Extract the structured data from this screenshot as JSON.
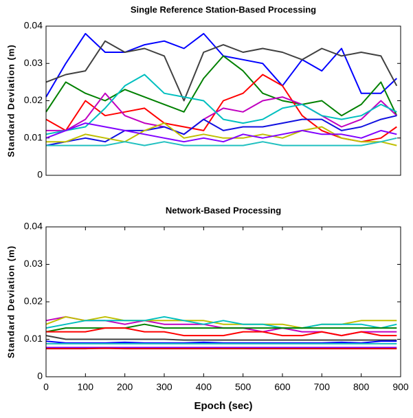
{
  "chart_data": [
    {
      "type": "line",
      "title": "Single Reference Station-Based Processing",
      "ylabel": "Standard Deviation (m)",
      "xlim": [
        0,
        900
      ],
      "ylim": [
        0,
        0.04
      ],
      "yticks": [
        0,
        0.01,
        0.02,
        0.03,
        0.04
      ],
      "x": [
        0,
        50,
        100,
        150,
        200,
        250,
        300,
        350,
        400,
        450,
        500,
        550,
        600,
        650,
        700,
        750,
        800,
        850,
        890
      ],
      "series": [
        {
          "color": "#0000ff",
          "values": [
            0.021,
            0.03,
            0.038,
            0.033,
            0.033,
            0.035,
            0.036,
            0.034,
            0.038,
            0.032,
            0.031,
            0.03,
            0.024,
            0.031,
            0.028,
            0.034,
            0.022,
            0.022,
            0.026
          ]
        },
        {
          "color": "#404040",
          "values": [
            0.025,
            0.027,
            0.028,
            0.036,
            0.033,
            0.034,
            0.032,
            0.02,
            0.033,
            0.035,
            0.033,
            0.034,
            0.033,
            0.031,
            0.034,
            0.032,
            0.033,
            0.032,
            0.024
          ]
        },
        {
          "color": "#008000",
          "values": [
            0.017,
            0.025,
            0.022,
            0.02,
            0.023,
            0.021,
            0.019,
            0.017,
            0.026,
            0.032,
            0.028,
            0.022,
            0.02,
            0.019,
            0.02,
            0.016,
            0.019,
            0.025,
            0.016
          ]
        },
        {
          "color": "#ff0000",
          "values": [
            0.015,
            0.012,
            0.02,
            0.016,
            0.017,
            0.018,
            0.014,
            0.013,
            0.012,
            0.02,
            0.022,
            0.027,
            0.024,
            0.016,
            0.012,
            0.01,
            0.009,
            0.01,
            0.013
          ]
        },
        {
          "color": "#c000c0",
          "values": [
            0.012,
            0.012,
            0.015,
            0.022,
            0.016,
            0.014,
            0.013,
            0.011,
            0.015,
            0.018,
            0.017,
            0.02,
            0.021,
            0.019,
            0.016,
            0.013,
            0.015,
            0.02,
            0.016
          ]
        },
        {
          "color": "#00bfbf",
          "values": [
            0.011,
            0.012,
            0.013,
            0.018,
            0.024,
            0.027,
            0.022,
            0.021,
            0.02,
            0.015,
            0.014,
            0.015,
            0.018,
            0.019,
            0.016,
            0.015,
            0.016,
            0.019,
            0.017
          ]
        },
        {
          "color": "#1010e0",
          "values": [
            0.008,
            0.009,
            0.01,
            0.009,
            0.012,
            0.012,
            0.013,
            0.011,
            0.015,
            0.012,
            0.013,
            0.013,
            0.014,
            0.015,
            0.015,
            0.012,
            0.013,
            0.015,
            0.016
          ]
        },
        {
          "color": "#bfbf00",
          "values": [
            0.009,
            0.009,
            0.011,
            0.01,
            0.009,
            0.012,
            0.014,
            0.01,
            0.011,
            0.01,
            0.01,
            0.011,
            0.01,
            0.012,
            0.013,
            0.01,
            0.009,
            0.009,
            0.008
          ]
        },
        {
          "color": "#20c0c0",
          "values": [
            0.008,
            0.008,
            0.008,
            0.008,
            0.009,
            0.008,
            0.009,
            0.008,
            0.008,
            0.008,
            0.008,
            0.009,
            0.008,
            0.008,
            0.008,
            0.008,
            0.008,
            0.009,
            0.01
          ]
        },
        {
          "color": "#8000ff",
          "values": [
            0.01,
            0.012,
            0.014,
            0.013,
            0.012,
            0.011,
            0.01,
            0.009,
            0.01,
            0.009,
            0.011,
            0.01,
            0.011,
            0.012,
            0.011,
            0.011,
            0.01,
            0.012,
            0.011
          ]
        }
      ]
    },
    {
      "type": "line",
      "title": "Network-Based Processing",
      "ylabel": "Standard Deviation (m)",
      "xlabel": "Epoch (sec)",
      "xlim": [
        0,
        900
      ],
      "xticks": [
        0,
        100,
        200,
        300,
        400,
        500,
        600,
        700,
        800,
        900
      ],
      "ylim": [
        0,
        0.04
      ],
      "yticks": [
        0,
        0.01,
        0.02,
        0.03,
        0.04
      ],
      "x": [
        0,
        50,
        100,
        150,
        200,
        250,
        300,
        350,
        400,
        450,
        500,
        550,
        600,
        650,
        700,
        750,
        800,
        850,
        890
      ],
      "series": [
        {
          "color": "#c000c0",
          "values": [
            0.015,
            0.016,
            0.015,
            0.015,
            0.014,
            0.015,
            0.014,
            0.014,
            0.014,
            0.013,
            0.013,
            0.012,
            0.013,
            0.012,
            0.012,
            0.011,
            0.012,
            0.012,
            0.012
          ]
        },
        {
          "color": "#bfbf00",
          "values": [
            0.014,
            0.016,
            0.015,
            0.016,
            0.015,
            0.015,
            0.015,
            0.015,
            0.015,
            0.014,
            0.014,
            0.014,
            0.014,
            0.013,
            0.014,
            0.014,
            0.015,
            0.015,
            0.015
          ]
        },
        {
          "color": "#00bfbf",
          "values": [
            0.013,
            0.014,
            0.015,
            0.015,
            0.015,
            0.015,
            0.016,
            0.015,
            0.014,
            0.015,
            0.014,
            0.014,
            0.013,
            0.013,
            0.014,
            0.014,
            0.014,
            0.013,
            0.014
          ]
        },
        {
          "color": "#008000",
          "values": [
            0.012,
            0.013,
            0.013,
            0.013,
            0.013,
            0.014,
            0.013,
            0.013,
            0.013,
            0.013,
            0.013,
            0.013,
            0.013,
            0.013,
            0.013,
            0.013,
            0.013,
            0.013,
            0.013
          ]
        },
        {
          "color": "#ff0000",
          "values": [
            0.012,
            0.012,
            0.012,
            0.013,
            0.013,
            0.012,
            0.012,
            0.011,
            0.011,
            0.011,
            0.012,
            0.012,
            0.011,
            0.011,
            0.012,
            0.011,
            0.012,
            0.011,
            0.011
          ]
        },
        {
          "color": "#404040",
          "values": [
            0.011,
            0.01,
            0.01,
            0.01,
            0.01,
            0.01,
            0.01,
            0.0098,
            0.0098,
            0.0098,
            0.0098,
            0.0098,
            0.0098,
            0.0098,
            0.0098,
            0.0098,
            0.0098,
            0.0098,
            0.0098
          ]
        },
        {
          "color": "#0000ff",
          "values": [
            0.0095,
            0.009,
            0.009,
            0.009,
            0.0092,
            0.009,
            0.009,
            0.009,
            0.0092,
            0.009,
            0.009,
            0.009,
            0.009,
            0.009,
            0.009,
            0.0092,
            0.009,
            0.0095,
            0.0095
          ]
        },
        {
          "color": "#20c0c0",
          "values": [
            0.0088,
            0.0088,
            0.0088,
            0.0088,
            0.0088,
            0.0088,
            0.0088,
            0.0088,
            0.0088,
            0.0088,
            0.0088,
            0.0088,
            0.0088,
            0.0088,
            0.0088,
            0.0088,
            0.0088,
            0.0088,
            0.0088
          ]
        },
        {
          "color": "#8000ff",
          "values": [
            0.0078,
            0.0078,
            0.0078,
            0.0078,
            0.0078,
            0.0078,
            0.0078,
            0.0078,
            0.0078,
            0.0078,
            0.0078,
            0.0078,
            0.0078,
            0.0078,
            0.0078,
            0.0078,
            0.0078,
            0.0078,
            0.0078
          ]
        },
        {
          "color": "#e00000",
          "values": [
            0.0075,
            0.0075,
            0.0075,
            0.0076,
            0.0075,
            0.0075,
            0.0075,
            0.0075,
            0.0075,
            0.0075,
            0.0075,
            0.0075,
            0.0075,
            0.0075,
            0.0075,
            0.0075,
            0.0075,
            0.0075,
            0.0075
          ]
        }
      ]
    }
  ]
}
